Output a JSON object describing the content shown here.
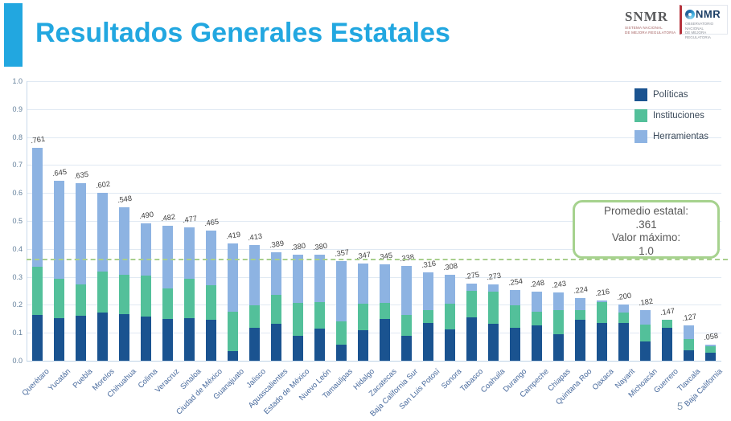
{
  "slide": {
    "title": "Resultados Generales Estatales",
    "page_number": "5",
    "logos": {
      "snmr": {
        "text": "SNMR",
        "subtitle_line1": "SISTEMA NACIONAL",
        "subtitle_line2": "DE MEJORA REGULATORIA"
      },
      "onmr": {
        "text": "NMR",
        "subtitle_line1": "OBSERVATORIO NACIONAL",
        "subtitle_line2": "DE MEJORA REGULATORIA"
      }
    }
  },
  "annotation_box": {
    "line1": "Promedio estatal:",
    "line2": ".361",
    "line3": "Valor máximo:",
    "line4": "1.0"
  },
  "colors": {
    "accent": "#22a7e0",
    "politicas": "#1a5390",
    "instituciones": "#53c09a",
    "herramientas": "#8db3e2",
    "average_line": "#a9cf8d",
    "box_border": "#a6d28e",
    "grid": "#e0e9f3",
    "axis": "#c8d9ea"
  },
  "chart_data": {
    "type": "bar",
    "stacked": true,
    "title": "",
    "xlabel": "",
    "ylabel": "",
    "ylim": [
      0,
      1.0
    ],
    "grid": true,
    "legend_position": "top-right",
    "average_line_value": 0.361,
    "max_value": 1.0,
    "yticks": [
      "0.0",
      "0.1",
      "0.2",
      "0.3",
      "0.4",
      "0.5",
      "0.6",
      "0.7",
      "0.8",
      "0.9",
      "1.0"
    ],
    "categories": [
      "Querétaro",
      "Yucatán",
      "Puebla",
      "Morelos",
      "Chihuahua",
      "Colima",
      "Veracruz",
      "Sinaloa",
      "Ciudad de México",
      "Guanajuato",
      "Jalisco",
      "Aguascalientes",
      "Estado de México",
      "Nuevo León",
      "Tamaulipas",
      "Hidalgo",
      "Zacatecas",
      "Baja California Sur",
      "San Luis Potosí",
      "Sonora",
      "Tabasco",
      "Coahuila",
      "Durango",
      "Campeche",
      "Chiapas",
      "Quintana Roo",
      "Oaxaca",
      "Nayarit",
      "Michoacán",
      "Guerrero",
      "Tlaxcala",
      "Baja California"
    ],
    "totals": [
      0.761,
      0.645,
      0.635,
      0.602,
      0.548,
      0.49,
      0.482,
      0.477,
      0.465,
      0.419,
      0.413,
      0.389,
      0.38,
      0.38,
      0.357,
      0.347,
      0.345,
      0.338,
      0.316,
      0.308,
      0.275,
      0.273,
      0.254,
      0.248,
      0.243,
      0.224,
      0.216,
      0.2,
      0.182,
      0.147,
      0.127,
      0.058
    ],
    "total_labels": [
      ".761",
      ".645",
      ".635",
      ".602",
      ".548",
      ".490",
      ".482",
      ".477",
      ".465",
      ".419",
      ".413",
      ".389",
      ".380",
      ".380",
      ".357",
      ".347",
      ".345",
      ".338",
      ".316",
      ".308",
      ".275",
      ".273",
      ".254",
      ".248",
      ".243",
      ".224",
      ".216",
      ".200",
      ".182",
      ".147",
      ".127",
      ".058"
    ],
    "series": [
      {
        "name": "Políticas",
        "color": "#1a5390",
        "values": [
          0.165,
          0.153,
          0.162,
          0.173,
          0.168,
          0.159,
          0.15,
          0.153,
          0.147,
          0.035,
          0.118,
          0.133,
          0.09,
          0.116,
          0.058,
          0.11,
          0.15,
          0.09,
          0.136,
          0.113,
          0.156,
          0.133,
          0.119,
          0.127,
          0.095,
          0.147,
          0.134,
          0.134,
          0.069,
          0.119,
          0.038,
          0.029
        ]
      },
      {
        "name": "Instituciones",
        "color": "#53c09a",
        "values": [
          0.17,
          0.139,
          0.112,
          0.145,
          0.139,
          0.147,
          0.11,
          0.139,
          0.122,
          0.141,
          0.079,
          0.104,
          0.118,
          0.095,
          0.084,
          0.095,
          0.058,
          0.075,
          0.046,
          0.092,
          0.093,
          0.113,
          0.08,
          0.049,
          0.085,
          0.035,
          0.077,
          0.037,
          0.061,
          0.028,
          0.041,
          0.024
        ]
      },
      {
        "name": "Herramientas",
        "color": "#8db3e2",
        "values": [
          0.426,
          0.353,
          0.361,
          0.284,
          0.241,
          0.184,
          0.222,
          0.185,
          0.196,
          0.243,
          0.216,
          0.152,
          0.172,
          0.169,
          0.215,
          0.142,
          0.137,
          0.173,
          0.134,
          0.103,
          0.026,
          0.027,
          0.055,
          0.072,
          0.063,
          0.042,
          0.005,
          0.029,
          0.052,
          0.0,
          0.048,
          0.005
        ]
      }
    ]
  }
}
